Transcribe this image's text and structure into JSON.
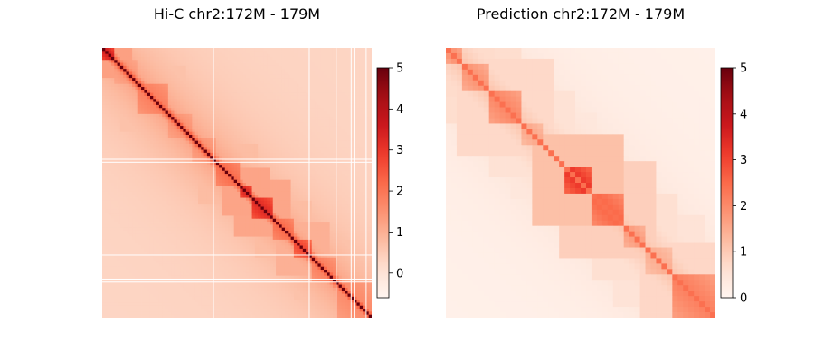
{
  "chart_data": [
    {
      "type": "heatmap",
      "title": "Hi-C chr2:172M - 179M",
      "colormap": "Reds",
      "colorbar": {
        "vmin": -0.6,
        "vmax": 5,
        "ticks": [
          0,
          1,
          2,
          3,
          4,
          5
        ],
        "tick_labels": [
          "0",
          "1",
          "2",
          "3",
          "4",
          "5"
        ]
      },
      "matrix_size": 90,
      "diagonal_value": 5,
      "background_value": 0.3,
      "domains": [
        {
          "start": 0,
          "end": 4,
          "value": 3.6
        },
        {
          "start": 4,
          "end": 12,
          "value": 1.5
        },
        {
          "start": 12,
          "end": 22,
          "value": 1.9
        },
        {
          "start": 22,
          "end": 30,
          "value": 1.6
        },
        {
          "start": 30,
          "end": 38,
          "value": 1.6
        },
        {
          "start": 38,
          "end": 46,
          "value": 2.2
        },
        {
          "start": 46,
          "end": 50,
          "value": 3.4
        },
        {
          "start": 50,
          "end": 57,
          "value": 3.3
        },
        {
          "start": 57,
          "end": 64,
          "value": 2.2
        },
        {
          "start": 64,
          "end": 70,
          "value": 2.8
        },
        {
          "start": 70,
          "end": 78,
          "value": 1.9
        },
        {
          "start": 78,
          "end": 90,
          "value": 1.7
        }
      ],
      "white_lines": [
        37,
        38,
        69,
        77,
        78,
        90
      ],
      "white_lines_cols": [
        37,
        69,
        78,
        83,
        84,
        88
      ]
    },
    {
      "type": "heatmap",
      "title": "Prediction chr2:172M - 179M",
      "colormap": "Reds",
      "colorbar": {
        "vmin": 0,
        "vmax": 5,
        "ticks": [
          0,
          1,
          2,
          3,
          4,
          5
        ],
        "tick_labels": [
          "0",
          "1",
          "2",
          "3",
          "4",
          "5"
        ]
      },
      "matrix_size": 50,
      "diagonal_value": 2.4,
      "background_value": 0.15,
      "domains": [
        {
          "start": 0,
          "end": 3,
          "value": 2.0
        },
        {
          "start": 3,
          "end": 8,
          "value": 1.9
        },
        {
          "start": 8,
          "end": 14,
          "value": 2.1
        },
        {
          "start": 14,
          "end": 18,
          "value": 1.6
        },
        {
          "start": 18,
          "end": 22,
          "value": 1.2
        },
        {
          "start": 22,
          "end": 27,
          "value": 3.3
        },
        {
          "start": 27,
          "end": 33,
          "value": 2.6
        },
        {
          "start": 33,
          "end": 37,
          "value": 1.8
        },
        {
          "start": 37,
          "end": 42,
          "value": 1.5
        },
        {
          "start": 42,
          "end": 50,
          "value": 2.2
        }
      ],
      "white_lines": [],
      "white_lines_cols": []
    }
  ]
}
